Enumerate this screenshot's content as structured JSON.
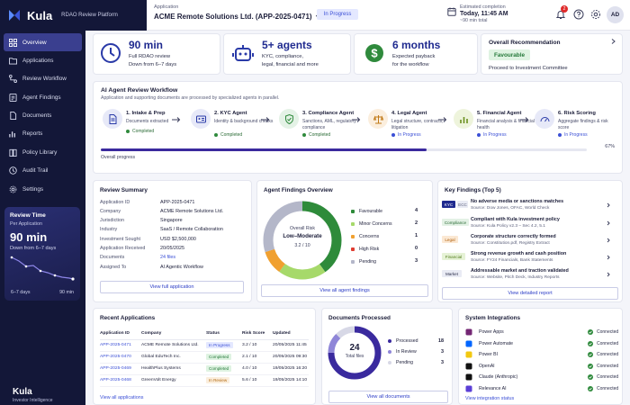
{
  "brand": {
    "name": "Kula",
    "product": "RDAO Review Platform",
    "footer_name": "Kula",
    "footer_sub": "Investor Intelligence"
  },
  "header": {
    "app_label": "Application",
    "app_value": "ACME Remote Solutions Ltd. (APP-2025-0471)",
    "status": "In Progress",
    "est_label": "Estimated completion",
    "est_time": "Today, 11:45 AM",
    "est_left": "~90 min total",
    "notif_count": "2",
    "avatar": "AD"
  },
  "sidebar": {
    "items": [
      {
        "label": "Overview",
        "icon": "grid-icon"
      },
      {
        "label": "Applications",
        "icon": "folder-icon"
      },
      {
        "label": "Review Workflow",
        "icon": "workflow-icon"
      },
      {
        "label": "Agent Findings",
        "icon": "findings-icon"
      },
      {
        "label": "Documents",
        "icon": "document-icon"
      },
      {
        "label": "Reports",
        "icon": "report-icon"
      },
      {
        "label": "Policy Library",
        "icon": "book-icon"
      },
      {
        "label": "Audit Trail",
        "icon": "clock-icon"
      },
      {
        "label": "Settings",
        "icon": "gear-icon"
      }
    ],
    "review_time": {
      "title": "Review Time",
      "subtitle": "Per Application",
      "value": "90 min",
      "desc": "Down from 6–7 days",
      "left_label": "6–7 days",
      "right_label": "90 min"
    }
  },
  "metrics": [
    {
      "value": "90 min",
      "line1": "Full RDAO review",
      "line2": "Down from 6–7 days"
    },
    {
      "value": "5+ agents",
      "line1": "KYC, compliance,",
      "line2": "legal, financial and more"
    },
    {
      "value": "6 months",
      "line1": "Expected payback",
      "line2": "for the workflow"
    }
  ],
  "recommendation": {
    "title": "Overall Recommendation",
    "value": "Favourable",
    "sub": "Proceed to Investment Committee"
  },
  "workflow": {
    "title": "AI Agent Review Workflow",
    "subtitle": "Application and supporting documents are processed by specialized agents in parallel.",
    "steps": [
      {
        "name": "1. Intake & Prep",
        "desc": "Documents extracted",
        "status": "Completed",
        "state": "done"
      },
      {
        "name": "2. KYC Agent",
        "desc": "Identity & background checks",
        "status": "Completed",
        "state": "done"
      },
      {
        "name": "3. Compliance Agent",
        "desc": "Sanctions, AML, regulatory compliance",
        "status": "Completed",
        "state": "done"
      },
      {
        "name": "4. Legal Agent",
        "desc": "Legal structure, contracts, litigation",
        "status": "In Progress",
        "state": "progress"
      },
      {
        "name": "5. Financial Agent",
        "desc": "Financial analysis & financial health",
        "status": "In Progress",
        "state": "progress"
      },
      {
        "name": "6. Risk Scoring",
        "desc": "Aggregate findings & risk score",
        "status": "In Progress",
        "state": "progress"
      }
    ],
    "progress_label": "Overall progress",
    "progress_pct": 67,
    "progress_text": "67%"
  },
  "review_summary": {
    "title": "Review Summary",
    "rows": [
      {
        "k": "Application ID",
        "v": "APP-2025-0471"
      },
      {
        "k": "Company",
        "v": "ACME Remote Solutions Ltd."
      },
      {
        "k": "Jurisdiction",
        "v": "Singapore"
      },
      {
        "k": "Industry",
        "v": "SaaS / Remote Collaboration"
      },
      {
        "k": "Investment Sought",
        "v": "USD $2,500,000"
      },
      {
        "k": "Application Received",
        "v": "20/05/2025"
      },
      {
        "k": "Documents",
        "v": "24 files"
      },
      {
        "k": "Assigned To",
        "v": "AI Agentic Workflow"
      }
    ],
    "button": "View full application"
  },
  "agent_findings": {
    "title": "Agent Findings Overview",
    "center_label": "Overall Risk",
    "center_value": "Low–Moderate",
    "center_score": "3.2 / 10",
    "legend": [
      {
        "label": "Favourable",
        "count": 4,
        "color": "#2e8b3a"
      },
      {
        "label": "Minor Concerns",
        "count": 2,
        "color": "#a6d96a"
      },
      {
        "label": "Concerns",
        "count": 1,
        "color": "#f0a030"
      },
      {
        "label": "High Risk",
        "count": 0,
        "color": "#e03c31"
      },
      {
        "label": "Pending",
        "count": 3,
        "color": "#b4b7c9"
      }
    ],
    "button": "View all agent findings"
  },
  "key_findings": {
    "title": "Key Findings (Top 5)",
    "items": [
      {
        "tag": "KYC",
        "tag2": "ECC",
        "title": "No adverse media or sanctions matches",
        "source": "Source: Dow Jones, OFAC, World Check"
      },
      {
        "tag": "Compliance",
        "title": "Compliant with Kula investment policy",
        "source": "Source: Kula Policy v2.3 – Sec 4.2, 5.1"
      },
      {
        "tag": "Legal",
        "title": "Corporate structure correctly formed",
        "source": "Source: Constitution.pdf, Registry Extract"
      },
      {
        "tag": "Financial",
        "title": "Strong revenue growth and cash position",
        "source": "Source: FY24 Financials, Bank Statements"
      },
      {
        "tag": "Market",
        "title": "Addressable market and traction validated",
        "source": "Source: Website, Pitch Deck, Industry Reports"
      }
    ],
    "button": "View detailed report"
  },
  "recent_apps": {
    "title": "Recent Applications",
    "columns": [
      "Application ID",
      "Company",
      "Status",
      "Risk Score",
      "Updated"
    ],
    "rows": [
      {
        "id": "APP-2025-0471",
        "company": "ACME Remote Solutions Ltd.",
        "status": "In Progress",
        "kind": "prog",
        "score": "3.2 / 10",
        "updated": "20/05/2025 11:45"
      },
      {
        "id": "APP-2025-0470",
        "company": "Global EduTech Inc.",
        "status": "Completed",
        "kind": "done",
        "score": "2.1 / 10",
        "updated": "20/05/2025 09:30"
      },
      {
        "id": "APP-2025-0469",
        "company": "HealthPlus Systems",
        "status": "Completed",
        "kind": "done",
        "score": "4.0 / 10",
        "updated": "19/05/2025 16:20"
      },
      {
        "id": "APP-2025-0468",
        "company": "GreenVolt Energy",
        "status": "In Review",
        "kind": "rev",
        "score": "5.6 / 10",
        "updated": "19/05/2025 14:10"
      }
    ],
    "link": "View all applications"
  },
  "documents": {
    "title": "Documents Processed",
    "total": "24",
    "total_label": "Total files",
    "legend": [
      {
        "label": "Processed",
        "count": "18",
        "value": 18,
        "color": "#3a2a9e"
      },
      {
        "label": "In Review",
        "count": "3",
        "value": 3,
        "color": "#8f86d8"
      },
      {
        "label": "Pending",
        "count": "3",
        "value": 3,
        "color": "#d7d8e6"
      }
    ],
    "button": "View all documents"
  },
  "integrations": {
    "title": "System Integrations",
    "items": [
      {
        "name": "Power Apps",
        "status": "Connected",
        "icon": "power-apps-icon",
        "color": "#742774"
      },
      {
        "name": "Power Automate",
        "status": "Connected",
        "icon": "power-automate-icon",
        "color": "#0066ff"
      },
      {
        "name": "Power BI",
        "status": "Connected",
        "icon": "power-bi-icon",
        "color": "#f2c811"
      },
      {
        "name": "OpenAI",
        "status": "Connected",
        "icon": "openai-icon",
        "color": "#111111"
      },
      {
        "name": "Claude (Anthropic)",
        "status": "Connected",
        "icon": "anthropic-icon",
        "color": "#111111"
      },
      {
        "name": "Relevance AI",
        "status": "Connected",
        "icon": "relevance-icon",
        "color": "#5b3fd6"
      }
    ],
    "link": "View integration status"
  }
}
